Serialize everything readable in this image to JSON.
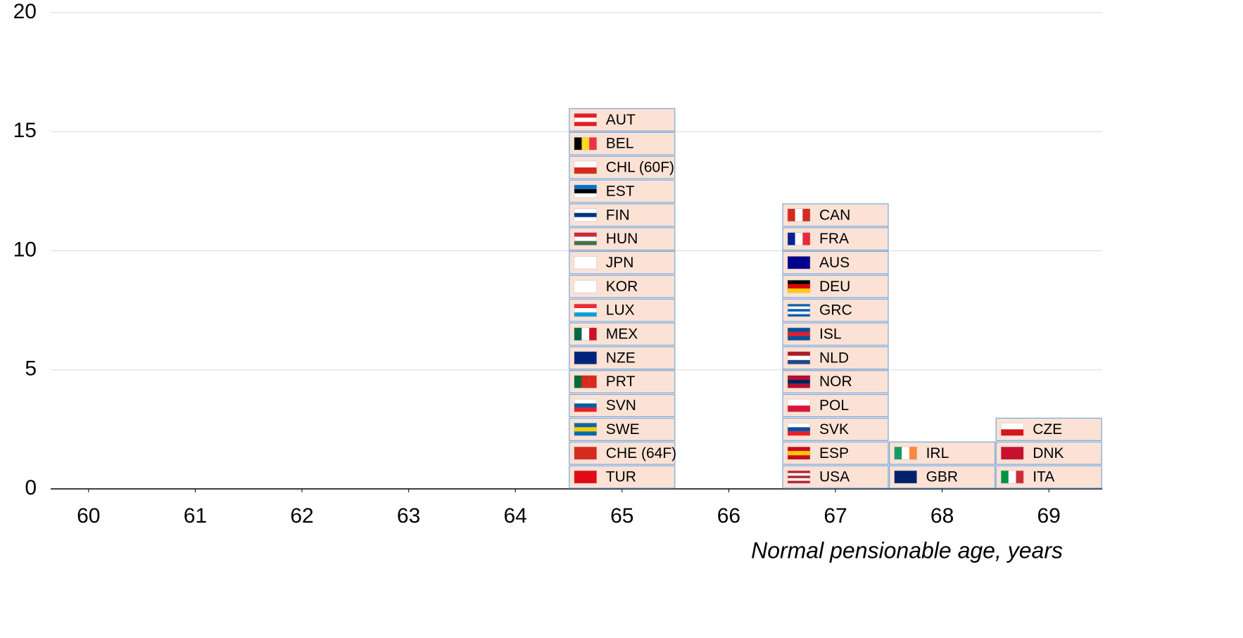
{
  "chart_data": {
    "type": "flagstack",
    "x_label": "Normal pensionable age, years",
    "categories": [
      "60",
      "61",
      "62",
      "63",
      "64",
      "65",
      "66",
      "67",
      "68",
      "69"
    ],
    "values": [
      0,
      0,
      0,
      0,
      0,
      16,
      0,
      12,
      2,
      3
    ],
    "countries": [
      [],
      [],
      [],
      [],
      [],
      [
        {
          "name": "AUT",
          "flag": [
            "#e31e24",
            "#ffffff",
            "#e31e24"
          ],
          "dir": "h"
        },
        {
          "name": "BEL",
          "flag": [
            "#000000",
            "#fdda24",
            "#ef3340"
          ],
          "dir": "v"
        },
        {
          "name": "CHL (60F)",
          "flag": [
            "#ffffff",
            "#d52b1e"
          ],
          "dir": "h"
        },
        {
          "name": "EST",
          "flag": [
            "#0072ce",
            "#000000",
            "#ffffff"
          ],
          "dir": "h"
        },
        {
          "name": "FIN",
          "flag": [
            "#ffffff",
            "#003580",
            "#ffffff"
          ],
          "dir": "h"
        },
        {
          "name": "HUN",
          "flag": [
            "#ce2939",
            "#ffffff",
            "#477050"
          ],
          "dir": "h"
        },
        {
          "name": "JPN",
          "flag": [
            "#ffffff"
          ],
          "dir": "h"
        },
        {
          "name": "KOR",
          "flag": [
            "#ffffff"
          ],
          "dir": "h"
        },
        {
          "name": "LUX",
          "flag": [
            "#ed2939",
            "#ffffff",
            "#00a1de"
          ],
          "dir": "h"
        },
        {
          "name": "MEX",
          "flag": [
            "#006847",
            "#ffffff",
            "#ce1126"
          ],
          "dir": "v"
        },
        {
          "name": "NZE",
          "flag": [
            "#00247d"
          ],
          "dir": "h"
        },
        {
          "name": "PRT",
          "flag": [
            "#046a38",
            "#da291c",
            "#da291c"
          ],
          "dir": "v"
        },
        {
          "name": "SVN",
          "flag": [
            "#ffffff",
            "#005da4",
            "#ed1c24"
          ],
          "dir": "h"
        },
        {
          "name": "SWE",
          "flag": [
            "#006aa7",
            "#fecc00",
            "#006aa7"
          ],
          "dir": "h"
        },
        {
          "name": "CHE (64F)",
          "flag": [
            "#d52b1e"
          ],
          "dir": "h"
        },
        {
          "name": "TUR",
          "flag": [
            "#e30a17"
          ],
          "dir": "h"
        }
      ],
      [],
      [
        {
          "name": "CAN",
          "flag": [
            "#d52b1e",
            "#ffffff",
            "#d52b1e"
          ],
          "dir": "v"
        },
        {
          "name": "FRA",
          "flag": [
            "#002395",
            "#ffffff",
            "#ed2939"
          ],
          "dir": "v"
        },
        {
          "name": "AUS",
          "flag": [
            "#00008b"
          ],
          "dir": "h"
        },
        {
          "name": "DEU",
          "flag": [
            "#000000",
            "#dd0000",
            "#ffce00"
          ],
          "dir": "h"
        },
        {
          "name": "GRC",
          "flag": [
            "#0d5eaf",
            "#ffffff",
            "#0d5eaf",
            "#ffffff",
            "#0d5eaf"
          ],
          "dir": "h"
        },
        {
          "name": "ISL",
          "flag": [
            "#02529c",
            "#dc1e35",
            "#02529c"
          ],
          "dir": "h"
        },
        {
          "name": "NLD",
          "flag": [
            "#ae1c28",
            "#ffffff",
            "#21468b"
          ],
          "dir": "h"
        },
        {
          "name": "NOR",
          "flag": [
            "#ba0c2f",
            "#00205b",
            "#ba0c2f"
          ],
          "dir": "h"
        },
        {
          "name": "POL",
          "flag": [
            "#ffffff",
            "#dc143c"
          ],
          "dir": "h"
        },
        {
          "name": "SVK",
          "flag": [
            "#ffffff",
            "#0b4ea2",
            "#ee1c25"
          ],
          "dir": "h"
        },
        {
          "name": "ESP",
          "flag": [
            "#c60b1e",
            "#ffc400",
            "#c60b1e"
          ],
          "dir": "h"
        },
        {
          "name": "USA",
          "flag": [
            "#b22234",
            "#ffffff",
            "#b22234",
            "#ffffff",
            "#b22234"
          ],
          "dir": "h"
        }
      ],
      [
        {
          "name": "IRL",
          "flag": [
            "#169b62",
            "#ffffff",
            "#ff883e"
          ],
          "dir": "v"
        },
        {
          "name": "GBR",
          "flag": [
            "#012169"
          ],
          "dir": "h"
        }
      ],
      [
        {
          "name": "CZE",
          "flag": [
            "#ffffff",
            "#d7141a"
          ],
          "dir": "h"
        },
        {
          "name": "DNK",
          "flag": [
            "#c8102e"
          ],
          "dir": "h"
        },
        {
          "name": "ITA",
          "flag": [
            "#009246",
            "#ffffff",
            "#ce2b37"
          ],
          "dir": "v"
        }
      ]
    ],
    "box_fill": "#fbe2d5",
    "box_stroke": "#7aa6d6",
    "ylim": [
      0,
      20
    ],
    "yticks": [
      0,
      5,
      10,
      15,
      20
    ],
    "grid": true
  }
}
